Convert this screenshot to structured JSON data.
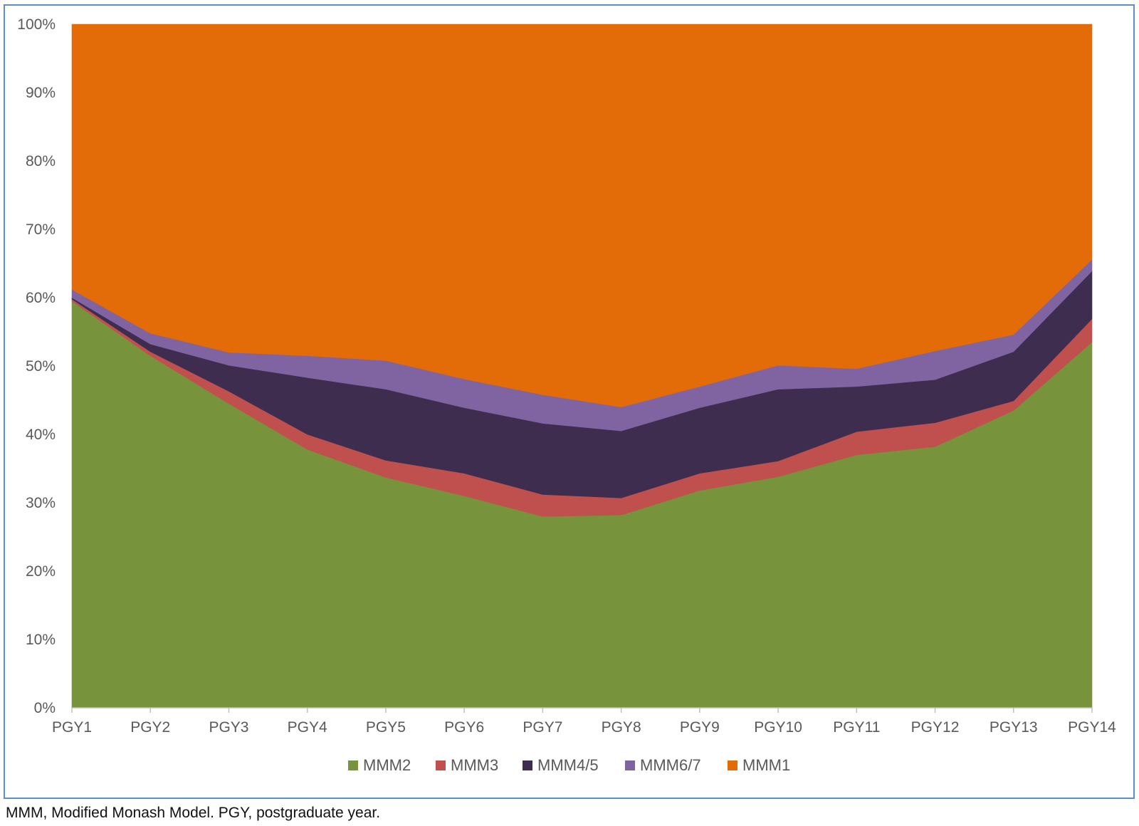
{
  "chart_data": {
    "type": "area",
    "stacked": "percent",
    "categories": [
      "PGY1",
      "PGY2",
      "PGY3",
      "PGY4",
      "PGY5",
      "PGY6",
      "PGY7",
      "PGY8",
      "PGY9",
      "PGY10",
      "PGY11",
      "PGY12",
      "PGY13",
      "PGY14"
    ],
    "series": [
      {
        "name": "MMM2",
        "color": "#77933c",
        "values": [
          59.5,
          51.5,
          44.5,
          37.8,
          33.7,
          31.0,
          28.0,
          28.2,
          31.8,
          33.8,
          37.0,
          38.2,
          43.5,
          53.5
        ]
      },
      {
        "name": "MMM3",
        "color": "#c0504d",
        "values": [
          0.3,
          0.6,
          1.8,
          2.2,
          2.5,
          3.3,
          3.2,
          2.5,
          2.5,
          2.3,
          3.4,
          3.5,
          1.4,
          3.4
        ]
      },
      {
        "name": "MMM4/5",
        "color": "#3f2d50",
        "values": [
          0.2,
          1.1,
          3.8,
          8.3,
          10.4,
          9.6,
          10.4,
          9.8,
          9.6,
          10.5,
          6.6,
          6.3,
          7.2,
          7.0
        ]
      },
      {
        "name": "MMM6/7",
        "color": "#8064a2",
        "values": [
          1.2,
          1.6,
          1.9,
          3.2,
          4.2,
          4.2,
          4.2,
          3.5,
          3.1,
          3.5,
          2.6,
          4.2,
          2.5,
          1.7
        ]
      },
      {
        "name": "MMM1",
        "color": "#e36c09",
        "values": [
          38.8,
          45.2,
          48.0,
          48.5,
          49.2,
          51.9,
          54.2,
          56.0,
          53.0,
          49.9,
          50.4,
          47.8,
          45.4,
          34.4
        ]
      }
    ],
    "yticks": [
      "0%",
      "10%",
      "20%",
      "30%",
      "40%",
      "50%",
      "60%",
      "70%",
      "80%",
      "90%",
      "100%"
    ],
    "ylim": [
      0,
      100
    ],
    "legend_position": "bottom-center",
    "axis_color": "#bfbfbf"
  },
  "caption": "MMM, Modified Monash Model. PGY, postgraduate year."
}
